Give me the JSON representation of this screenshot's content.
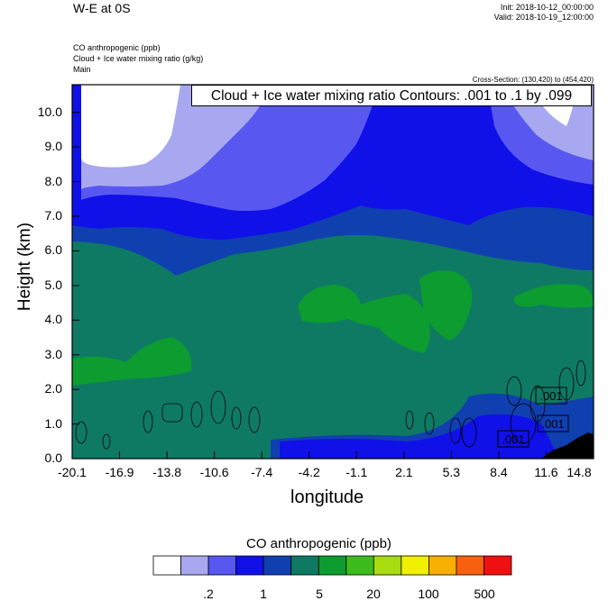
{
  "header": {
    "title": "W-E at 0S",
    "init": "Init: 2018-10-12_00:00:00",
    "valid": "Valid: 2018-10-19_12:00:00",
    "field1": "CO anthropogenic   (ppb)",
    "field2": "Cloud + Ice water mixing ratio   (g/kg)",
    "field3": "Main",
    "cross_section": "Cross-Section: (130,420) to (454,420)",
    "contour_info": "Cloud + Ice water mixing ratio Contours: .001 to .1 by .099"
  },
  "chart_data": {
    "type": "heatmap",
    "title": "W-E at 0S",
    "xlabel": "longitude",
    "ylabel": "Height (km)",
    "xlim": [
      -20.1,
      14.8
    ],
    "ylim": [
      0,
      10.8
    ],
    "x_ticks": [
      "-20.1",
      "-16.9",
      "-13.8",
      "-10.6",
      "-7.4",
      "-4.2",
      "-1.1",
      "2.1",
      "5.3",
      "8.4",
      "11.6",
      "14.8"
    ],
    "y_ticks": [
      "0.0",
      "1.0",
      "2.0",
      "3.0",
      "4.0",
      "5.0",
      "6.0",
      "7.0",
      "8.0",
      "9.0",
      "10.0"
    ],
    "contour_labels": [
      ".001",
      ".001",
      ".001"
    ],
    "colorbar": {
      "title": "CO anthropogenic  (ppb)",
      "colors": [
        "#ffffff",
        "#a8a8f0",
        "#5858f0",
        "#1010e8",
        "#1040b0",
        "#0e7a64",
        "#0c9c30",
        "#3cbc1c",
        "#a8dc10",
        "#f0f000",
        "#f8b000",
        "#f86010",
        "#f01010"
      ],
      "labels": [
        ".2",
        "1",
        "5",
        "20",
        "100",
        "500"
      ]
    }
  }
}
